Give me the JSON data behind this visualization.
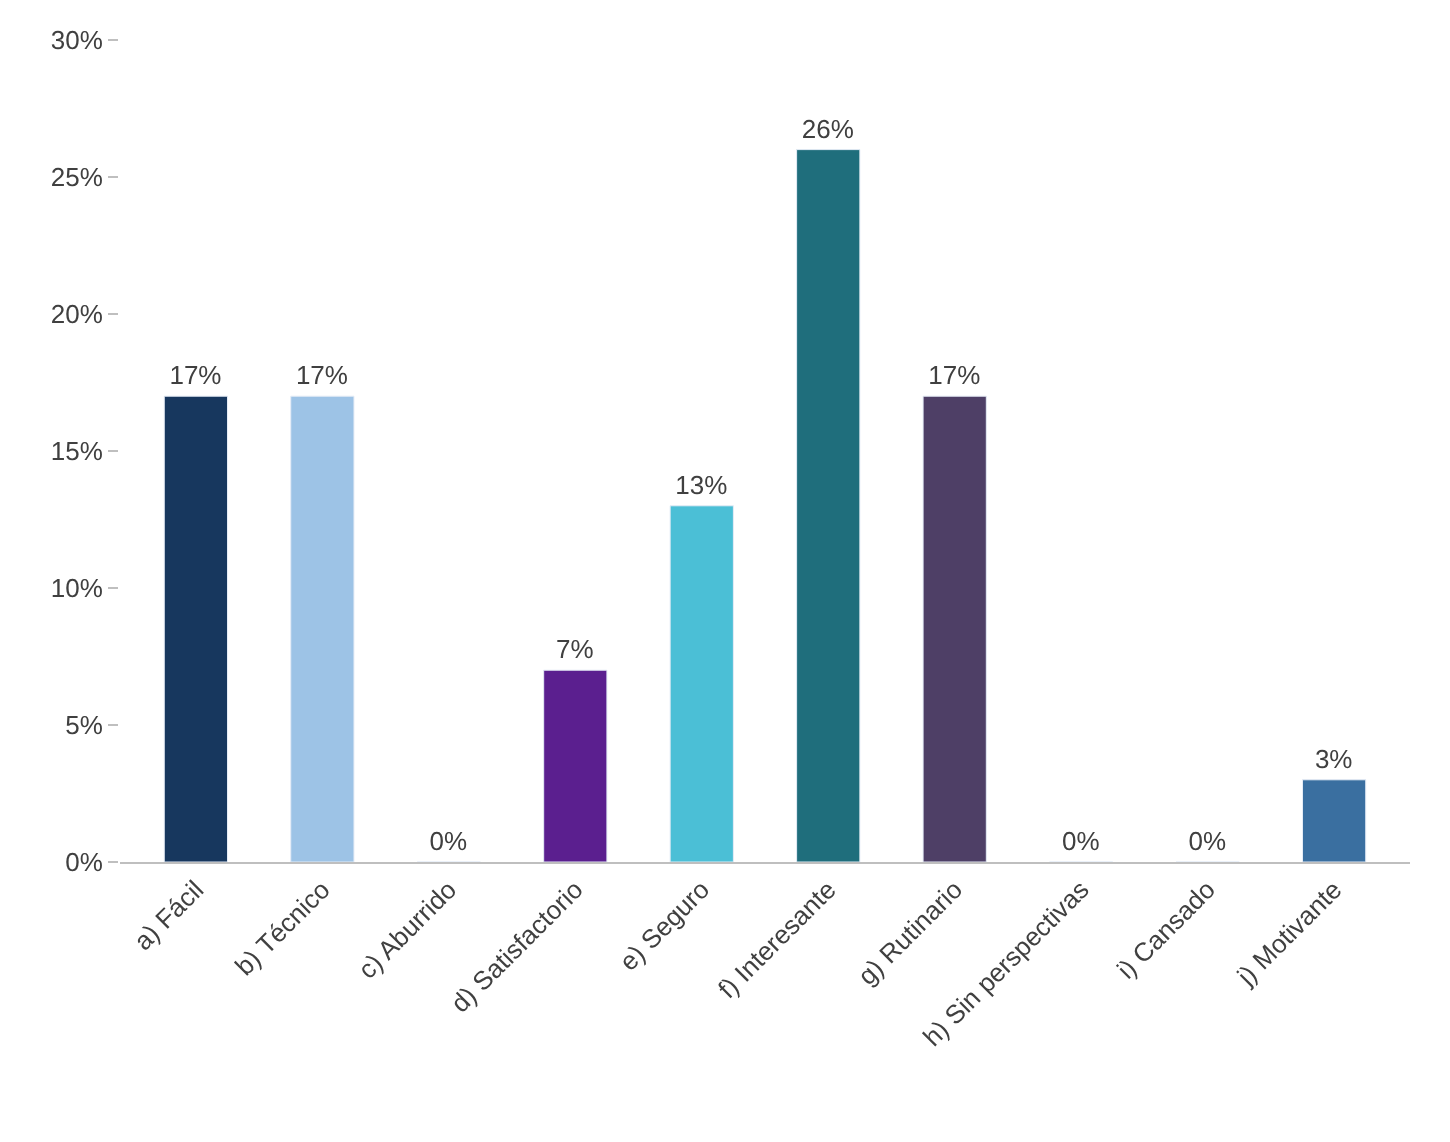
{
  "chart_data": {
    "type": "bar",
    "categories": [
      "a) Fácil",
      "b) Técnico",
      "c) Aburrido",
      "d) Satisfactorio",
      "e) Seguro",
      "f) Interesante",
      "g) Rutinario",
      "h) Sin perspectivas",
      "i) Cansado",
      "j) Motivante"
    ],
    "values": [
      17,
      17,
      0,
      7,
      13,
      26,
      17,
      0,
      0,
      3
    ],
    "colors": [
      "#17375e",
      "#9dc3e6",
      null,
      "#5b1f8f",
      "#4bbfd6",
      "#1f6e7c",
      "#4e3f66",
      null,
      null,
      "#3a6fa0"
    ],
    "value_labels": [
      "17%",
      "17%",
      "0%",
      "7%",
      "13%",
      "26%",
      "17%",
      "0%",
      "0%",
      "3%"
    ],
    "ylim": [
      0,
      30
    ],
    "yticks": [
      {
        "value": 0,
        "label": "0%"
      },
      {
        "value": 5,
        "label": "5%"
      },
      {
        "value": 10,
        "label": "10%"
      },
      {
        "value": 15,
        "label": "15%"
      },
      {
        "value": 20,
        "label": "20%"
      },
      {
        "value": 25,
        "label": "25%"
      },
      {
        "value": 30,
        "label": "30%"
      }
    ],
    "grid": false
  }
}
